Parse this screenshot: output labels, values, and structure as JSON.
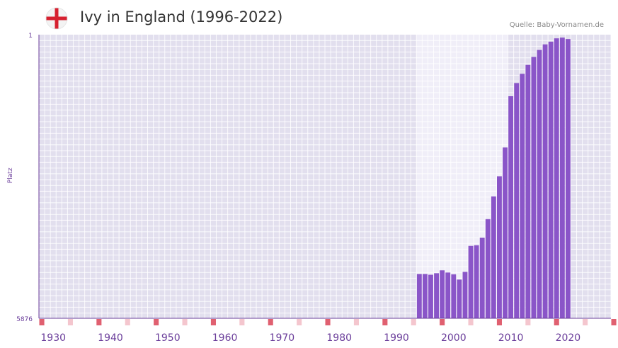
{
  "header": {
    "title": "Ivy in England (1996-2022)",
    "source": "Quelle: Baby-Vornamen.de",
    "flag_icon": "england-flag-icon"
  },
  "colors": {
    "bar": "#8a55c8",
    "axis": "#6a3d9a",
    "plot_bg": "#e2dfee",
    "highlight_bg": "#f0eef8",
    "marker_strong": "#e06070",
    "marker_light": "#f4c6ce"
  },
  "chart_data": {
    "type": "bar",
    "title": "Ivy in England (1996-2022)",
    "xlabel": "",
    "ylabel": "Platz",
    "y_inverted": true,
    "ylim": [
      1,
      5876
    ],
    "y_tick_labels": [
      "1",
      "5876"
    ],
    "xlim": [
      1928,
      2028
    ],
    "x_ticks": [
      1930,
      1940,
      1950,
      1960,
      1970,
      1980,
      1990,
      2000,
      2010,
      2020
    ],
    "highlight_range": [
      1994,
      2010
    ],
    "years": [
      1994,
      1995,
      1996,
      1997,
      1998,
      1999,
      2000,
      2001,
      2002,
      2003,
      2004,
      2005,
      2006,
      2007,
      2008,
      2009,
      2010,
      2011,
      2012,
      2013,
      2014,
      2015,
      2016,
      2017,
      2018,
      2019,
      2020
    ],
    "values": [
      4958,
      4958,
      4974,
      4943,
      4883,
      4928,
      4964,
      5074,
      4914,
      4377,
      4362,
      4205,
      3822,
      3351,
      2936,
      2337,
      1276,
      1003,
      812,
      627,
      463,
      318,
      202,
      146,
      77,
      62,
      91
    ]
  }
}
